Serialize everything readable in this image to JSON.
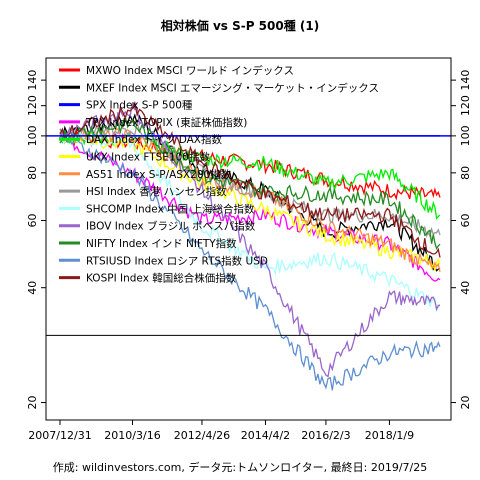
{
  "chart_data": {
    "type": "line",
    "title": "相対株価 vs S-P 500種 (1)",
    "footer": "作成: wildinvestors.com, データ元:トムソンロイター, 最終日: 2019/7/25",
    "x": [
      "2007-12-31",
      "2010-03-16",
      "2012-04-26",
      "2014-04-02",
      "2016-02-03",
      "2018-01-09",
      "2019-07-25"
    ],
    "x_tick_labels": [
      "2007/12/31",
      "2010/3/16",
      "2012/4/26",
      "2014/4/2",
      "2016/2/3",
      "2018/1/9"
    ],
    "y_scale": "log",
    "ylim": [
      18,
      160
    ],
    "y_ticks": [
      20,
      40,
      60,
      80,
      100,
      120,
      140
    ],
    "reference_lines": [
      100,
      30
    ],
    "grid": false,
    "legend_position": "top-left",
    "series": [
      {
        "name": "MXWO Index MSCI ワールド インデックス",
        "color": "#ff0000",
        "values": [
          100,
          96,
          88,
          84,
          77,
          72,
          69
        ]
      },
      {
        "name": "MXEF Index MSCI エマージング・マーケット・インデックス",
        "color": "#000000",
        "values": [
          100,
          112,
          82,
          72,
          56,
          60,
          45
        ]
      },
      {
        "name": "SPX Index S-P 500種",
        "color": "#0000ff",
        "values": [
          100,
          100,
          100,
          100,
          100,
          100,
          100
        ]
      },
      {
        "name": "TPX Index TOPIX (東証株価指数)",
        "color": "#ff00ff",
        "values": [
          100,
          80,
          60,
          62,
          56,
          52,
          42
        ]
      },
      {
        "name": "DAX Index ドイツ DAX指数",
        "color": "#00ee00",
        "values": [
          100,
          98,
          87,
          85,
          75,
          80,
          62
        ]
      },
      {
        "name": "UKX Index FTSE100指数",
        "color": "#ffff00",
        "values": [
          100,
          95,
          75,
          64,
          55,
          50,
          46
        ]
      },
      {
        "name": "AS51 Index S-P/ASX200指数",
        "color": "#ff8c40",
        "values": [
          100,
          100,
          78,
          70,
          58,
          52,
          44
        ]
      },
      {
        "name": "HSI Index 香港 ハンセン指数",
        "color": "#999999",
        "values": [
          100,
          106,
          80,
          70,
          62,
          62,
          55
        ]
      },
      {
        "name": "SHCOMP Index 中国 上海総合指数",
        "color": "#aaffff",
        "values": [
          100,
          95,
          58,
          45,
          48,
          42,
          36
        ]
      },
      {
        "name": "IBOV Index ブラジル ボベスパ指数",
        "color": "#9966cc",
        "values": [
          100,
          118,
          72,
          45,
          24,
          38,
          36
        ]
      },
      {
        "name": "NIFTY Index インド NIFTY指数",
        "color": "#228b22",
        "values": [
          100,
          108,
          78,
          72,
          70,
          68,
          52
        ]
      },
      {
        "name": "RTSIUSD Index ロシア RTS指数 USD",
        "color": "#5f8fcf",
        "values": [
          100,
          80,
          50,
          35,
          22,
          27,
          28
        ]
      },
      {
        "name": "KOSPI Index 韓国総合株価指数",
        "color": "#8b1a1a",
        "values": [
          100,
          118,
          85,
          70,
          62,
          62,
          48
        ]
      }
    ]
  }
}
